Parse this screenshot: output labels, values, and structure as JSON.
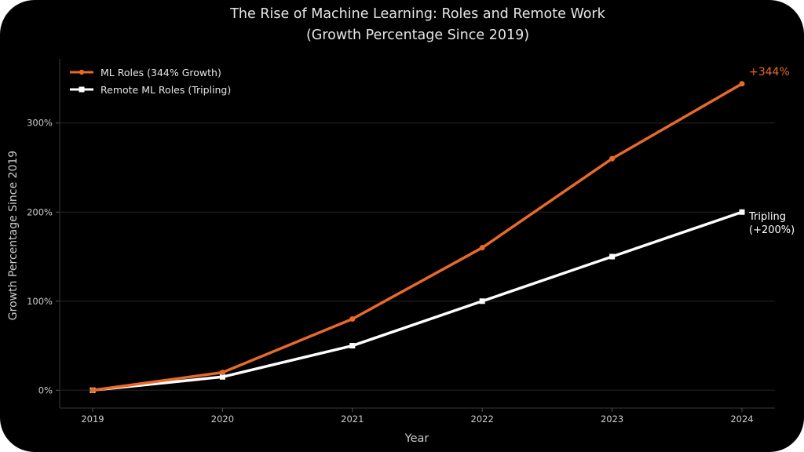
{
  "chart_data": {
    "type": "line",
    "title_line1": "The Rise of Machine Learning: Roles and Remote Work",
    "title_line2": "(Growth Percentage Since 2019)",
    "xlabel": "Year",
    "ylabel": "Growth Percentage Since 2019",
    "categories": [
      "2019",
      "2020",
      "2021",
      "2022",
      "2023",
      "2024"
    ],
    "ylim": [
      -20,
      372
    ],
    "yticks": [
      0,
      100,
      200,
      300
    ],
    "ytick_labels": [
      "0%",
      "100%",
      "200%",
      "300%"
    ],
    "grid": true,
    "legend_position": "top-left",
    "series": [
      {
        "name": "ML Roles (344% Growth)",
        "color": "#e8692a",
        "marker": "circle",
        "values": [
          0,
          20,
          80,
          160,
          260,
          344
        ]
      },
      {
        "name": "Remote ML Roles (Tripling)",
        "color": "#ffffff",
        "marker": "square",
        "values": [
          0,
          15,
          50,
          100,
          150,
          200
        ]
      }
    ],
    "annotations": {
      "ml_end": "+344%",
      "remote_end_line1": "Tripling",
      "remote_end_line2": "(+200%)"
    }
  }
}
